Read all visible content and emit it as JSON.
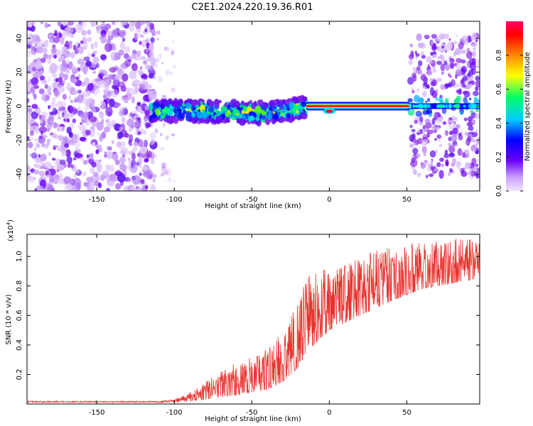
{
  "title": "C2E1.2024.220.19.36.R01",
  "chart_data": [
    {
      "type": "heatmap",
      "xlabel": "Height of straight line (km)",
      "ylabel": "Frequency (Hz)",
      "xlim": [
        -195,
        97
      ],
      "ylim": [
        -50,
        50
      ],
      "xticks": [
        -150,
        -100,
        -50,
        0,
        50
      ],
      "yticks": [
        -40,
        -20,
        0,
        20,
        40
      ],
      "colorbar": {
        "label": "Normalized spectral amplitude",
        "range": [
          0,
          1
        ],
        "ticks": [
          0.0,
          0.2,
          0.4,
          0.6,
          0.8
        ],
        "colormap": "rainbow"
      },
      "regions": [
        {
          "x": [
            -195,
            -115
          ],
          "freq": [
            -50,
            50
          ],
          "amplitude": "low-scattered"
        },
        {
          "x": [
            -115,
            -15
          ],
          "freq_center": [
            -3,
            3
          ],
          "amplitude": "medium"
        },
        {
          "x": [
            -15,
            52
          ],
          "freq_center": 0,
          "amplitude": "high"
        },
        {
          "x": [
            52,
            97
          ],
          "freq": [
            -40,
            40
          ],
          "amplitude": "low-medium"
        }
      ]
    },
    {
      "type": "line",
      "xlabel": "Height of straight line (km)",
      "ylabel": "SNR (10 * v/v)",
      "yunit_label": "(x10",
      "yunit_exp": "4",
      "yunit_close": ")",
      "xlim": [
        -195,
        97
      ],
      "ylim": [
        0,
        1.15
      ],
      "xticks": [
        -150,
        -100,
        -50,
        0,
        50
      ],
      "yticks": [
        0.2,
        0.4,
        0.6,
        0.8,
        1.0
      ],
      "color": "#e8332f",
      "envelope": {
        "x": [
          -195,
          -140,
          -110,
          -100,
          -90,
          -80,
          -70,
          -60,
          -50,
          -40,
          -30,
          -20,
          -15,
          -10,
          -5,
          0,
          10,
          20,
          30,
          40,
          50,
          60,
          70,
          80,
          97
        ],
        "lower": [
          0.01,
          0.01,
          0.01,
          0.01,
          0.02,
          0.03,
          0.05,
          0.06,
          0.08,
          0.1,
          0.15,
          0.25,
          0.35,
          0.4,
          0.45,
          0.5,
          0.55,
          0.6,
          0.65,
          0.7,
          0.74,
          0.78,
          0.8,
          0.82,
          0.85
        ],
        "upper": [
          0.02,
          0.02,
          0.02,
          0.03,
          0.08,
          0.15,
          0.22,
          0.28,
          0.32,
          0.38,
          0.5,
          0.7,
          0.85,
          0.92,
          0.95,
          0.9,
          0.95,
          1.0,
          1.05,
          1.07,
          1.09,
          1.1,
          1.11,
          1.12,
          1.12
        ]
      }
    }
  ]
}
